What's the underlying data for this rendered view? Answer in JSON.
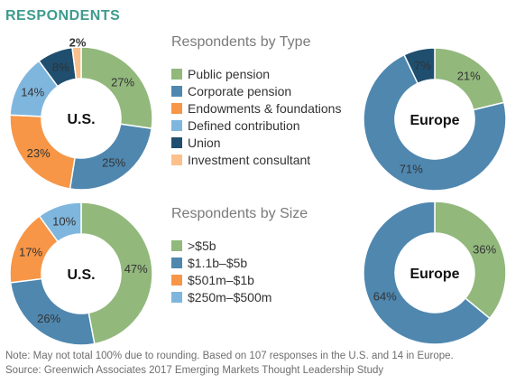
{
  "title": "RESPONDENTS",
  "colors": {
    "title": "#3E9B8D",
    "heading": "#7A7A7A",
    "text": "#333333",
    "footnote": "#6E6E6E",
    "donut_label": "#333333"
  },
  "legends": {
    "type": [
      "Public pension",
      "Corporate pension",
      "Endowments & foundations",
      "Defined contribution",
      "Union",
      "Investment consultant"
    ],
    "size": [
      ">$5b",
      "$1.1b–$5b",
      "$501m–$1b",
      "$250m–$500m"
    ]
  },
  "chart_data": [
    {
      "type": "pie",
      "variant": "donut",
      "title": "Respondents by Type",
      "center_label": "U.S.",
      "categories": [
        "Public pension",
        "Corporate pension",
        "Endowments & foundations",
        "Defined contribution",
        "Union",
        "Investment consultant"
      ],
      "values": [
        27,
        25,
        23,
        14,
        8,
        2
      ],
      "labels": [
        "27%",
        "25%",
        "23%",
        "14%",
        "8%",
        "2%"
      ],
      "colors": [
        "#92B87C",
        "#4F87AF",
        "#F79646",
        "#7FB6DD",
        "#1F4E6E",
        "#FBC08C"
      ]
    },
    {
      "type": "pie",
      "variant": "donut",
      "title": "Respondents by Type",
      "center_label": "Europe",
      "categories": [
        "Public pension",
        "Corporate pension",
        "Union"
      ],
      "values": [
        21,
        71,
        7
      ],
      "labels": [
        "21%",
        "71%",
        "7%"
      ],
      "colors": [
        "#92B87C",
        "#4F87AF",
        "#1F4E6E"
      ]
    },
    {
      "type": "pie",
      "variant": "donut",
      "title": "Respondents by Size",
      "center_label": "U.S.",
      "categories": [
        ">$5b",
        "$1.1b–$5b",
        "$501m–$1b",
        "$250m–$500m"
      ],
      "values": [
        47,
        26,
        17,
        10
      ],
      "labels": [
        "47%",
        "26%",
        "17%",
        "10%"
      ],
      "colors": [
        "#92B87C",
        "#4F87AF",
        "#F79646",
        "#7FB6DD"
      ]
    },
    {
      "type": "pie",
      "variant": "donut",
      "title": "Respondents by Size",
      "center_label": "Europe",
      "categories": [
        ">$5b",
        "$1.1b–$5b"
      ],
      "values": [
        36,
        64
      ],
      "labels": [
        "36%",
        "64%"
      ],
      "colors": [
        "#92B87C",
        "#4F87AF"
      ]
    }
  ],
  "footnotes": {
    "note": "Note: May not total 100% due to rounding. Based on 107 responses in the U.S. and 14 in Europe.",
    "source": "Source: Greenwich Associates 2017 Emerging Markets Thought Leadership Study"
  }
}
